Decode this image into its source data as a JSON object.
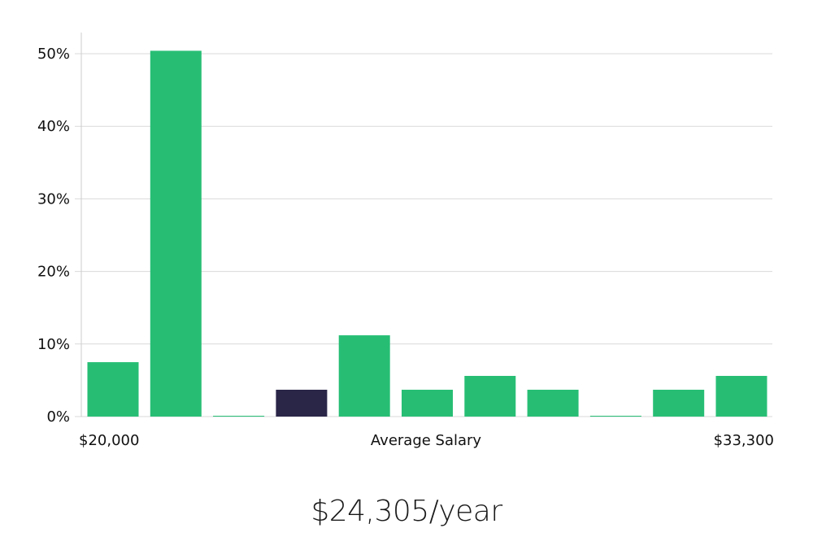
{
  "chart_data": {
    "type": "bar",
    "title": "",
    "xlabel": "Average Salary",
    "ylabel": "",
    "x_range_labels": {
      "min": "$20,000",
      "max": "$33,300"
    },
    "ylim": [
      0,
      53
    ],
    "yticks": [
      0,
      10,
      20,
      30,
      40,
      50
    ],
    "ytick_labels": [
      "0%",
      "10%",
      "20%",
      "30%",
      "40%",
      "50%"
    ],
    "grid": true,
    "legend": "none",
    "values": [
      7.5,
      50.4,
      0.1,
      3.7,
      11.2,
      3.7,
      5.6,
      3.7,
      0.1,
      3.7,
      5.6
    ],
    "highlight_index": 3,
    "colors": {
      "bar": "#27be74",
      "highlight": "#2a2648",
      "grid": "#d9d9d9",
      "axis": "#cccccc"
    }
  },
  "summary": {
    "salary_text": "$24,305/year"
  }
}
